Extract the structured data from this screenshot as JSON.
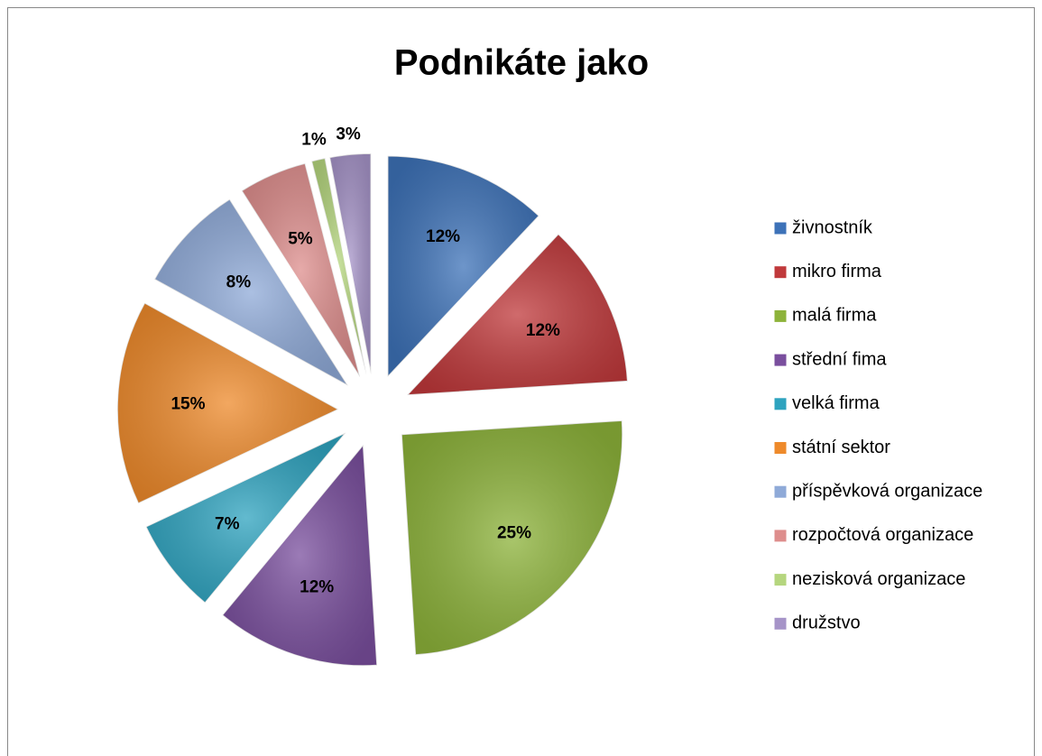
{
  "chart_data": {
    "type": "pie",
    "title": "Podnikáte jako",
    "categories": [
      "živnostník",
      "mikro firma",
      "malá firma",
      "střední fima",
      "velká firma",
      "státní sektor",
      "příspěvková organizace",
      "rozpočtová organizace",
      "nezisková organizace",
      "družstvo"
    ],
    "values": [
      12,
      12,
      25,
      12,
      7,
      15,
      8,
      5,
      1,
      3
    ],
    "value_labels": [
      "12%",
      "12%",
      "25%",
      "12%",
      "7%",
      "15%",
      "8%",
      "5%",
      "1%",
      "3%"
    ],
    "colors": [
      "#3d72b8",
      "#c0393b",
      "#8db33a",
      "#7a4f9e",
      "#2ea3bf",
      "#ee8a2b",
      "#8faad8",
      "#de8e8d",
      "#b5d67e",
      "#a694c8"
    ],
    "legend": "right"
  }
}
